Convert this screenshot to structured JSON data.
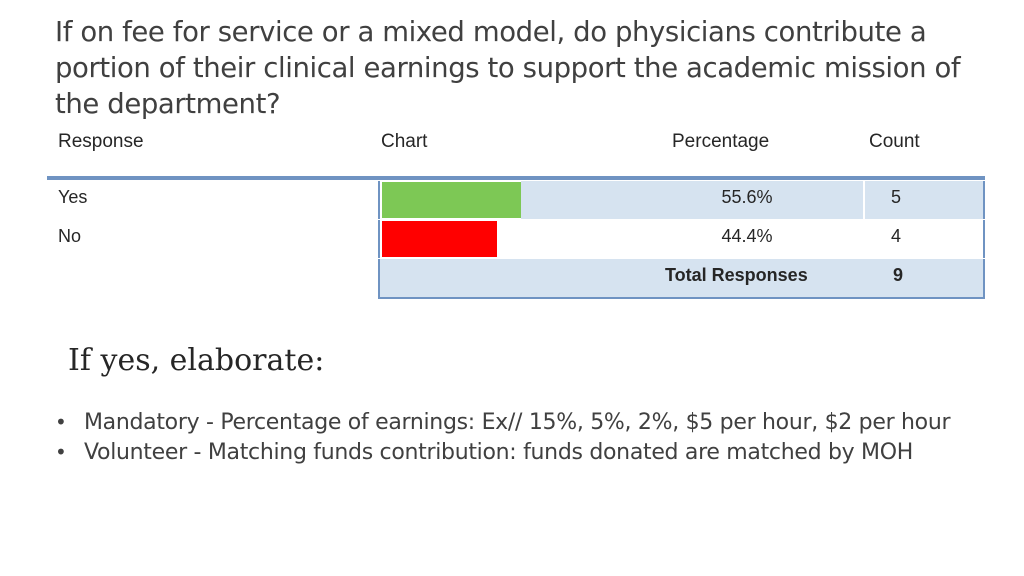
{
  "title": "If on fee for service or a mixed model, do physicians contribute a portion of their clinical earnings to support the academic mission of the department?",
  "table": {
    "headers": {
      "response": "Response",
      "chart": "Chart",
      "percentage": "Percentage",
      "count": "Count"
    },
    "rows": [
      {
        "response": "Yes",
        "percentage": "55.6%",
        "count": "5",
        "fraction": 0.556,
        "color": "#7dc855"
      },
      {
        "response": "No",
        "percentage": "44.4%",
        "count": "4",
        "fraction": 0.444,
        "color": "#ff0000"
      }
    ],
    "total": {
      "label": "Total Responses",
      "count": "9"
    }
  },
  "subheading": "If yes, elaborate:",
  "bullets": [
    "Mandatory - Percentage of earnings: Ex// 15%, 5%, 2%, $5 per hour, $2 per hour",
    "Volunteer - Matching funds contribution: funds donated are matched by MOH"
  ],
  "bullet_glyph": "•"
}
